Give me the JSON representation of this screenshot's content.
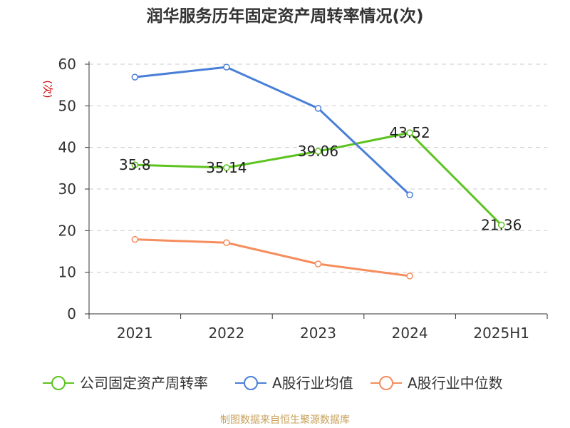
{
  "chart_data": {
    "type": "line",
    "title": "润华服务历年固定资产周转率情况(次)",
    "ylabel": "(次)",
    "ylim": [
      0,
      60
    ],
    "yticks": [
      0,
      10,
      20,
      30,
      40,
      50,
      60
    ],
    "grid": true,
    "legend_position": "bottom",
    "categories": [
      "2021",
      "2022",
      "2023",
      "2024",
      "2025H1"
    ],
    "series": [
      {
        "name": "公司固定资产周转率",
        "color": "#5dc31f",
        "values": [
          35.8,
          35.14,
          39.06,
          43.52,
          21.36
        ],
        "labels": [
          "35.8",
          "35.14",
          "39.06",
          "43.52",
          "21.36"
        ]
      },
      {
        "name": "A股行业均值",
        "color": "#4a7fd8",
        "values": [
          56.9,
          59.3,
          49.4,
          28.6,
          null
        ]
      },
      {
        "name": "A股行业中位数",
        "color": "#f58d5d",
        "values": [
          17.9,
          17.1,
          12.0,
          9.1,
          null
        ]
      }
    ]
  },
  "source_text": "制图数据来自恒生聚源数据库",
  "colors": {
    "ylabel": "#cc0000",
    "source": "#c8a05a",
    "axis": "#333333",
    "grid": "#cccccc",
    "text": "#333333"
  }
}
